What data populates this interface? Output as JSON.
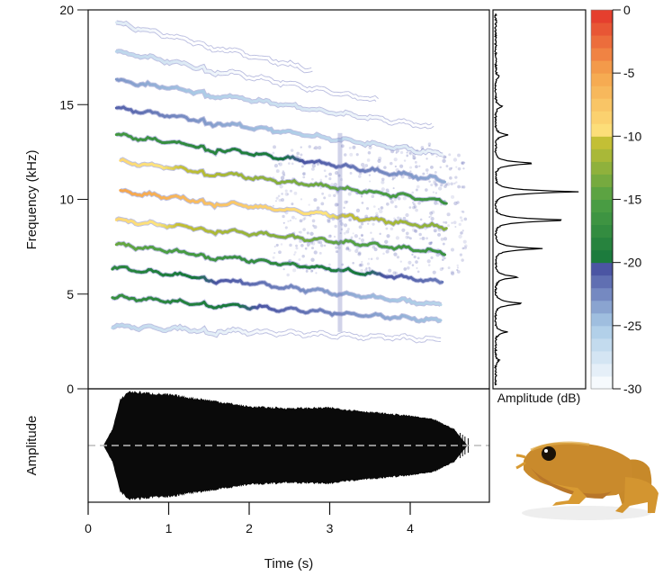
{
  "chart_data": [
    {
      "type": "heatmap",
      "panel": "spectrogram",
      "ylabel": "Frequency (kHz)",
      "ylim": [
        0,
        20
      ],
      "yticks": [
        "0",
        "5",
        "10",
        "15",
        "20"
      ],
      "xlim": [
        0,
        4.98
      ],
      "harmonics": [
        {
          "start_khz": 3.3,
          "end_khz": 2.6,
          "t_start": 0.3,
          "t_end": 4.4,
          "peak_db": -26
        },
        {
          "start_khz": 4.85,
          "end_khz": 3.6,
          "t_start": 0.3,
          "t_end": 4.4,
          "peak_db": -17
        },
        {
          "start_khz": 6.4,
          "end_khz": 4.4,
          "t_start": 0.3,
          "t_end": 4.4,
          "peak_db": -18
        },
        {
          "start_khz": 7.6,
          "end_khz": 5.65,
          "t_start": 0.35,
          "t_end": 4.4,
          "peak_db": -14
        },
        {
          "start_khz": 8.9,
          "end_khz": 7.2,
          "t_start": 0.35,
          "t_end": 4.45,
          "peak_db": -9
        },
        {
          "start_khz": 10.4,
          "end_khz": 8.5,
          "t_start": 0.4,
          "t_end": 4.45,
          "peak_db": -5
        },
        {
          "start_khz": 12.0,
          "end_khz": 9.9,
          "t_start": 0.4,
          "t_end": 4.45,
          "peak_db": -9
        },
        {
          "start_khz": 13.4,
          "end_khz": 11.0,
          "t_start": 0.35,
          "t_end": 4.45,
          "peak_db": -16
        },
        {
          "start_khz": 14.8,
          "end_khz": 12.4,
          "t_start": 0.35,
          "t_end": 4.4,
          "peak_db": -21
        },
        {
          "start_khz": 16.3,
          "end_khz": 13.8,
          "t_start": 0.35,
          "t_end": 4.3,
          "peak_db": -23
        },
        {
          "start_khz": 17.8,
          "end_khz": 15.2,
          "t_start": 0.35,
          "t_end": 3.6,
          "peak_db": -26
        },
        {
          "start_khz": 19.3,
          "end_khz": 16.8,
          "t_start": 0.35,
          "t_end": 2.8,
          "peak_db": -28
        }
      ]
    },
    {
      "type": "line",
      "panel": "power-spectrum",
      "xlabel": "Amplitude (dB)",
      "ylim": [
        0,
        20
      ],
      "peaks": [
        {
          "khz": 1.5,
          "rel_amplitude": 0.04
        },
        {
          "khz": 3.0,
          "rel_amplitude": 0.14
        },
        {
          "khz": 4.5,
          "rel_amplitude": 0.33
        },
        {
          "khz": 5.9,
          "rel_amplitude": 0.28
        },
        {
          "khz": 7.4,
          "rel_amplitude": 0.52
        },
        {
          "khz": 8.9,
          "rel_amplitude": 0.86
        },
        {
          "khz": 10.4,
          "rel_amplitude": 0.92
        },
        {
          "khz": 11.9,
          "rel_amplitude": 0.47
        },
        {
          "khz": 13.4,
          "rel_amplitude": 0.14
        },
        {
          "khz": 14.9,
          "rel_amplitude": 0.08
        },
        {
          "khz": 16.5,
          "rel_amplitude": 0.04
        }
      ]
    },
    {
      "type": "area",
      "panel": "waveform",
      "ylabel": "Amplitude",
      "xlabel": "Time (s)",
      "xlim": [
        0,
        4.98
      ],
      "xticks": [
        "0",
        "1",
        "2",
        "3",
        "4"
      ],
      "envelope": [
        {
          "t": 0.2,
          "a": 0.03
        },
        {
          "t": 0.3,
          "a": 0.3
        },
        {
          "t": 0.4,
          "a": 0.85
        },
        {
          "t": 0.5,
          "a": 1.0
        },
        {
          "t": 1.0,
          "a": 0.94
        },
        {
          "t": 1.5,
          "a": 0.84
        },
        {
          "t": 2.0,
          "a": 0.72
        },
        {
          "t": 2.5,
          "a": 0.69
        },
        {
          "t": 3.0,
          "a": 0.7
        },
        {
          "t": 3.5,
          "a": 0.62
        },
        {
          "t": 4.0,
          "a": 0.55
        },
        {
          "t": 4.3,
          "a": 0.48
        },
        {
          "t": 4.55,
          "a": 0.3
        },
        {
          "t": 4.6,
          "a": 0.2
        },
        {
          "t": 4.7,
          "a": 0.02
        }
      ]
    },
    {
      "type": "colorbar",
      "panel": "colorbar",
      "range_db": [
        -30,
        0
      ],
      "ticks": [
        "0",
        "-5",
        "-10",
        "-15",
        "-20",
        "-25",
        "-30"
      ],
      "colors": {
        "-30": "#ffffff",
        "-25": "#a9cbe6",
        "-20.5": "#4b55a3",
        "-20": "#16773c",
        "-15": "#4fa044",
        "-10.5": "#c3bf35",
        "-10": "#fde47e",
        "-5": "#f5a54d",
        "0": "#e3342a"
      }
    }
  ],
  "photo": {
    "subject": "frog"
  }
}
